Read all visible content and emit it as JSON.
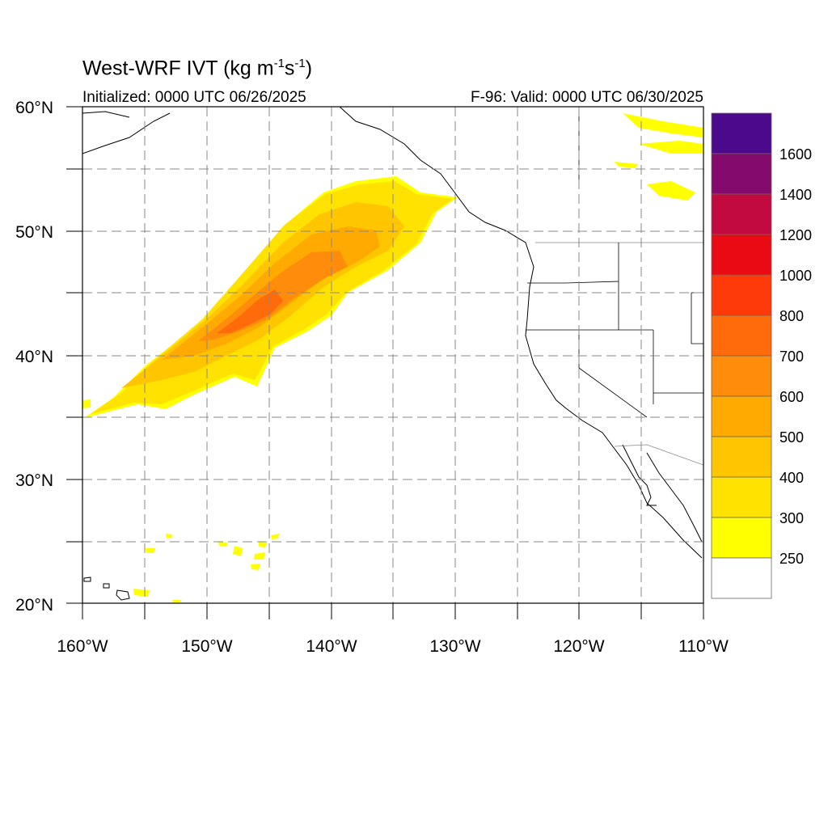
{
  "map": {
    "title_main": "West-WRF IVT (kg m",
    "title_sup1": "-1",
    "title_mid": "s",
    "title_sup2": "-1",
    "title_end": ")",
    "init_label": "Initialized: 0000 UTC 06/26/2025",
    "valid_label": "F-96: Valid: 0000 UTC 06/30/2025",
    "lon_labels": [
      "160°W",
      "150°W",
      "140°W",
      "130°W",
      "120°W",
      "110°W"
    ],
    "lat_labels": [
      "60°N",
      "50°N",
      "40°N",
      "30°N",
      "20°N"
    ],
    "extent": {
      "lon_min": -160,
      "lon_max": -110,
      "lat_min": 20,
      "lat_max": 60
    }
  },
  "colorbar": {
    "labels": [
      "1600",
      "1400",
      "1200",
      "1000",
      "800",
      "700",
      "600",
      "500",
      "400",
      "300",
      "250"
    ],
    "colors": [
      "#4b0a8c",
      "#850a6e",
      "#c20a40",
      "#ea0a14",
      "#ff3a0a",
      "#ff6a0a",
      "#ff8c0a",
      "#ffaa00",
      "#ffc600",
      "#ffe200",
      "#ffff00",
      "#ffffff"
    ]
  }
}
